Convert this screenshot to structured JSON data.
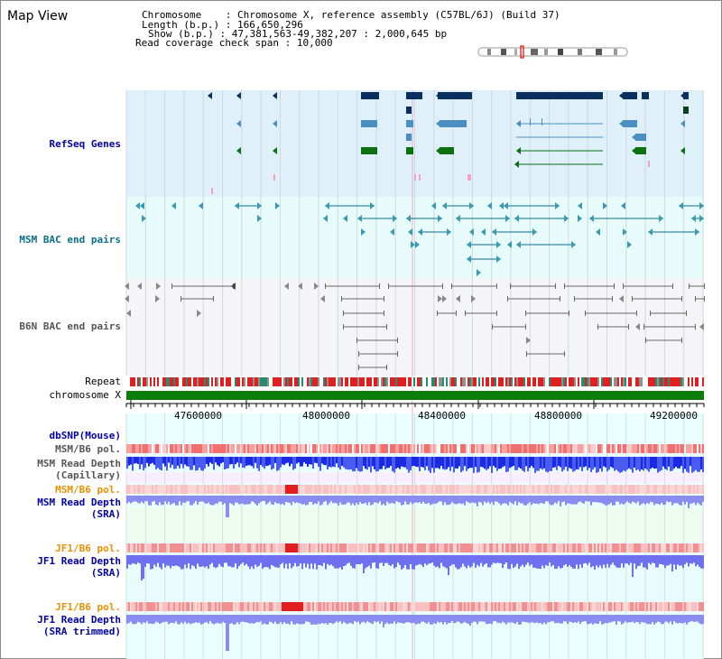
{
  "title": "Map View",
  "info": {
    "chromosome_label": "Chromosome",
    "chromosome_value": "Chromosome X, reference assembly (C57BL/6J) (Build 37)",
    "length_label": "Length (b.p.)",
    "length_value": "166,650,296",
    "show_label": "Show (b.p.)",
    "show_value": "47,381,563-49,382,207 : 2,000,645 bp",
    "coverage_label": "Read coverage check span",
    "coverage_value": "10,000"
  },
  "tracks": {
    "refseq": "RefSeq Genes",
    "msm_bac": "MSM BAC end pairs",
    "b6n_bac": "B6N BAC end pairs",
    "repeat": "Repeat",
    "chromosome": "chromosome X",
    "dbsnp": "dbSNP(Mouse)",
    "msm_b6_pol_1": "MSM/B6 pol.",
    "msm_depth_cap_1": "MSM Read Depth",
    "msm_depth_cap_2": "(Capillary)",
    "msm_b6_pol_2": "MSM/B6 pol.",
    "msm_depth_sra_1": "MSM Read Depth",
    "msm_depth_sra_2": "(SRA)",
    "jf1_pol_1": "JF1/B6 pol.",
    "jf1_depth_sra_1": "JF1 Read Depth",
    "jf1_depth_sra_2": "(SRA)",
    "jf1_pol_2": "JF1/B6 pol.",
    "jf1_depth_trim_1": "JF1 Read Depth",
    "jf1_depth_trim_2": "(SRA trimmed)"
  },
  "axis": {
    "ticks": [
      "47600000",
      "48000000",
      "48400000",
      "48800000",
      "49200000"
    ]
  },
  "colors": {
    "refseq_bg": "#dff0fa",
    "msm_bac_bg": "#e8fbfb",
    "b6n_bg": "#f5f5f8",
    "chrom_bar": "#0a7d0a",
    "gene_dark": "#0a3060",
    "gene_mid": "#4a8fc0",
    "gene_green": "#0a7010",
    "msm_label": "#0b6e8a",
    "b6n_label": "#555555",
    "dbsnp_label": "#0000aa",
    "pol_label": "#e89000"
  }
}
